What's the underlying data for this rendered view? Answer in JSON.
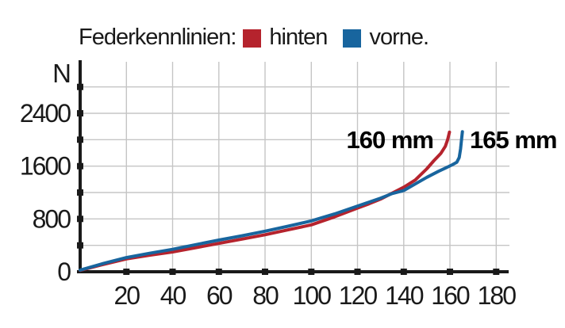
{
  "colors": {
    "background": "#ffffff",
    "axis": "#1a1a1a",
    "grid": "#c5c5c5",
    "text": "#1a1a1a"
  },
  "legend": {
    "label": "Federkennlinien:",
    "items": [
      {
        "name": "hinten",
        "color": "#b5232d"
      },
      {
        "name": "vorne.",
        "color": "#18659e"
      }
    ]
  },
  "chart_data": {
    "type": "line",
    "title": "Federkennlinien",
    "xlabel": "",
    "ylabel": "N",
    "xlim": [
      0,
      186
    ],
    "ylim": [
      0,
      3200
    ],
    "x_ticks": [
      20,
      40,
      60,
      80,
      100,
      120,
      140,
      160,
      180
    ],
    "y_tick_labels": [
      0,
      800,
      1600,
      2400
    ],
    "y_grid_step": 400,
    "y_grid_max": 2800,
    "grid": true,
    "legend_position": "top",
    "series": [
      {
        "name": "hinten",
        "color": "#b5232d",
        "annotation": "160 mm",
        "annotation_side": "left",
        "points": [
          [
            0,
            20
          ],
          [
            10,
            110
          ],
          [
            20,
            195
          ],
          [
            30,
            250
          ],
          [
            40,
            300
          ],
          [
            50,
            365
          ],
          [
            60,
            430
          ],
          [
            70,
            495
          ],
          [
            80,
            560
          ],
          [
            90,
            635
          ],
          [
            100,
            710
          ],
          [
            110,
            830
          ],
          [
            120,
            965
          ],
          [
            125,
            1030
          ],
          [
            130,
            1100
          ],
          [
            135,
            1190
          ],
          [
            140,
            1280
          ],
          [
            145,
            1390
          ],
          [
            150,
            1560
          ],
          [
            153,
            1680
          ],
          [
            156,
            1790
          ],
          [
            158,
            1900
          ],
          [
            159,
            2000
          ],
          [
            159.8,
            2115
          ]
        ]
      },
      {
        "name": "vorne",
        "color": "#18659e",
        "annotation": "165 mm",
        "annotation_side": "right",
        "points": [
          [
            0,
            25
          ],
          [
            10,
            125
          ],
          [
            20,
            215
          ],
          [
            30,
            280
          ],
          [
            40,
            340
          ],
          [
            50,
            410
          ],
          [
            60,
            480
          ],
          [
            70,
            545
          ],
          [
            80,
            615
          ],
          [
            90,
            690
          ],
          [
            100,
            770
          ],
          [
            110,
            875
          ],
          [
            120,
            995
          ],
          [
            125,
            1055
          ],
          [
            130,
            1115
          ],
          [
            135,
            1185
          ],
          [
            140,
            1230
          ],
          [
            145,
            1330
          ],
          [
            150,
            1430
          ],
          [
            155,
            1520
          ],
          [
            158,
            1570
          ],
          [
            161,
            1620
          ],
          [
            163,
            1660
          ],
          [
            164,
            1730
          ],
          [
            164.6,
            1860
          ],
          [
            165,
            2000
          ],
          [
            165.4,
            2120
          ]
        ]
      }
    ]
  }
}
